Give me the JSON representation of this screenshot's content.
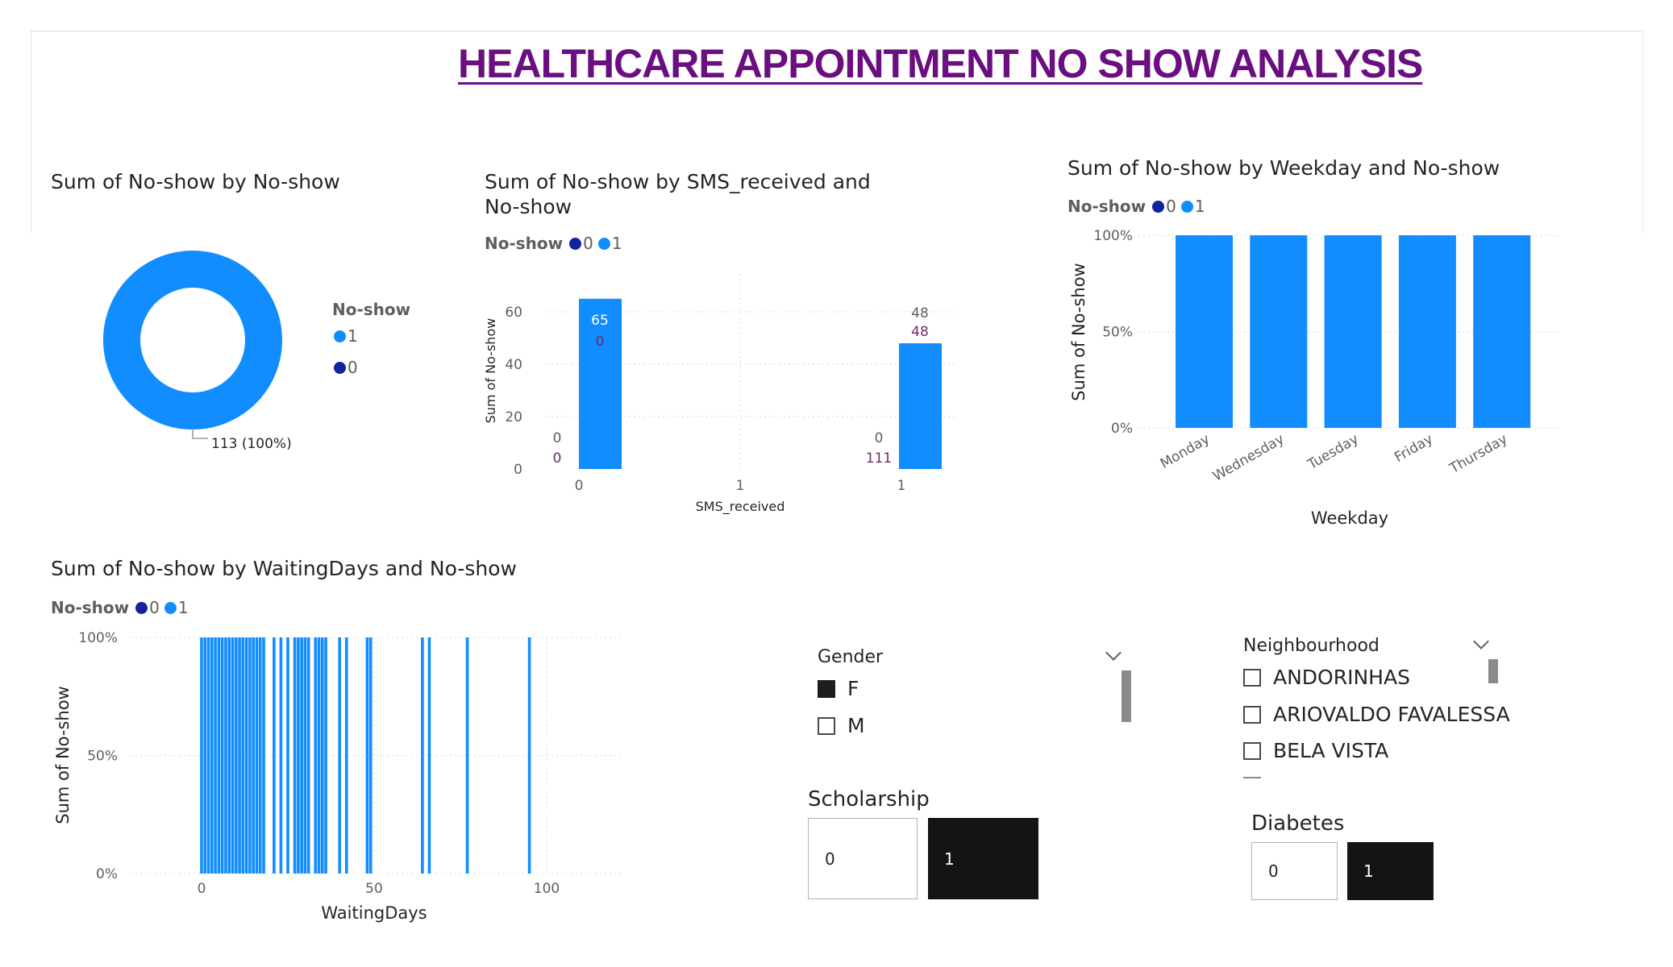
{
  "page_title": "HEALTHCARE APPOINTMENT NO SHOW ANALYSIS",
  "colors": {
    "series_0": "#12239e",
    "series_1": "#118dff",
    "title": "#6a0e80",
    "label_purple": "#6b2d6b"
  },
  "donut": {
    "title": "Sum of No-show by No-show",
    "legend_title": "No-show",
    "legend_items": [
      {
        "label": "1",
        "color": "#118dff"
      },
      {
        "label": "0",
        "color": "#12239e"
      }
    ],
    "data_label": "113 (100%)"
  },
  "sms": {
    "title_line1": "Sum of No-show by SMS_received and",
    "title_line2": "No-show",
    "legend_title": "No-show",
    "legend_items": [
      {
        "label": "0",
        "color": "#12239e"
      },
      {
        "label": "1",
        "color": "#118dff"
      }
    ]
  },
  "weekday": {
    "title": "Sum of No-show by Weekday and No-show",
    "legend_title": "No-show",
    "legend_items": [
      {
        "label": "0",
        "color": "#12239e"
      },
      {
        "label": "1",
        "color": "#118dff"
      }
    ]
  },
  "waiting": {
    "title": "Sum of No-show by WaitingDays and No-show",
    "legend_title": "No-show",
    "legend_items": [
      {
        "label": "0",
        "color": "#12239e"
      },
      {
        "label": "1",
        "color": "#118dff"
      }
    ]
  },
  "gender_slicer": {
    "title": "Gender",
    "items": [
      {
        "label": "F",
        "checked": true
      },
      {
        "label": "M",
        "checked": false
      }
    ]
  },
  "neighbourhood_slicer": {
    "title": "Neighbourhood",
    "items": [
      {
        "label": "ANDORINHAS",
        "checked": false
      },
      {
        "label": "ARIOVALDO FAVALESSA",
        "checked": false
      },
      {
        "label": "BELA VISTA",
        "checked": false
      }
    ]
  },
  "scholarship": {
    "title": "Scholarship",
    "options": [
      {
        "label": "0",
        "selected": false
      },
      {
        "label": "1",
        "selected": true
      }
    ]
  },
  "diabetes": {
    "title": "Diabetes",
    "options": [
      {
        "label": "0",
        "selected": false
      },
      {
        "label": "1",
        "selected": true
      }
    ]
  },
  "chart_data": [
    {
      "type": "pie",
      "title": "Sum of No-show by No-show",
      "categories": [
        "1"
      ],
      "values": [
        113
      ],
      "data_labels": [
        "113 (100%)"
      ],
      "legend_title": "No-show",
      "legend_position": "right"
    },
    {
      "type": "bar",
      "title": "Sum of No-show by SMS_received and No-show",
      "xlabel": "SMS_received",
      "ylabel": "Sum of No-show",
      "x_ticks": [
        "0",
        "1",
        "1"
      ],
      "y_ticks": [
        "0",
        "20",
        "40",
        "60"
      ],
      "ylim": [
        0,
        70
      ],
      "categories": [
        "0",
        "1"
      ],
      "series": [
        {
          "name": "0",
          "values": [
            0,
            0
          ]
        },
        {
          "name": "1",
          "values": [
            65,
            48
          ]
        }
      ],
      "data_labels": [
        {
          "category": "0",
          "label_1": "65",
          "label_2": "0",
          "base_1": "0",
          "base_2": "0"
        },
        {
          "category": "1",
          "label_1": "48",
          "label_2": "48",
          "base_1": "0",
          "base_2": "111"
        }
      ],
      "grid": true,
      "legend_position": "top-left"
    },
    {
      "type": "bar",
      "stacked_percent": true,
      "title": "Sum of No-show by Weekday and No-show",
      "xlabel": "Weekday",
      "ylabel": "Sum of No-show",
      "categories": [
        "Monday",
        "Wednesday",
        "Tuesday",
        "Friday",
        "Thursday"
      ],
      "y_ticks": [
        "0%",
        "50%",
        "100%"
      ],
      "ylim": [
        0,
        100
      ],
      "series": [
        {
          "name": "0",
          "values": [
            0,
            0,
            0,
            0,
            0
          ]
        },
        {
          "name": "1",
          "values": [
            100,
            100,
            100,
            100,
            100
          ]
        }
      ],
      "grid": true,
      "legend_position": "top-left"
    },
    {
      "type": "bar",
      "stacked_percent": true,
      "title": "Sum of No-show by WaitingDays and No-show",
      "xlabel": "WaitingDays",
      "ylabel": "Sum of No-show",
      "x_ticks": [
        "0",
        "50",
        "100"
      ],
      "y_ticks": [
        "0%",
        "50%",
        "100%"
      ],
      "xlim": [
        -5,
        120
      ],
      "ylim": [
        0,
        100
      ],
      "x": [
        0,
        1,
        2,
        3,
        4,
        5,
        6,
        7,
        8,
        9,
        10,
        11,
        12,
        13,
        14,
        15,
        16,
        17,
        18,
        21,
        23,
        25,
        27,
        28,
        29,
        30,
        31,
        33,
        34,
        35,
        36,
        40,
        42,
        48,
        49,
        64,
        66,
        77,
        95
      ],
      "series": [
        {
          "name": "1",
          "values": [
            100,
            100,
            100,
            100,
            100,
            100,
            100,
            100,
            100,
            100,
            100,
            100,
            100,
            100,
            100,
            100,
            100,
            100,
            100,
            100,
            100,
            100,
            100,
            100,
            100,
            100,
            100,
            100,
            100,
            100,
            100,
            100,
            100,
            100,
            100,
            100,
            100,
            100,
            100
          ]
        }
      ],
      "grid": true,
      "legend_position": "top-left"
    }
  ]
}
